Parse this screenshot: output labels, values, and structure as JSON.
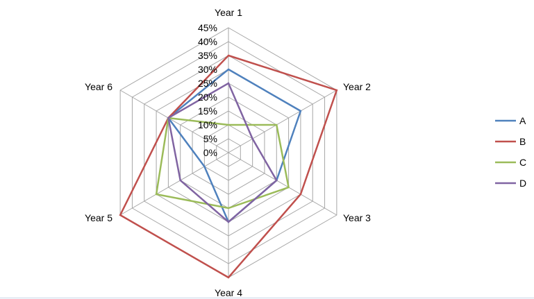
{
  "chart_data": {
    "type": "radar",
    "title": "",
    "axes": [
      "Year 1",
      "Year 2",
      "Year 3",
      "Year 4",
      "Year 5",
      "Year 6"
    ],
    "tick_values": [
      0,
      5,
      10,
      15,
      20,
      25,
      30,
      35,
      40,
      45
    ],
    "tick_labels": [
      "0%",
      "5%",
      "10%",
      "15%",
      "20%",
      "25%",
      "30%",
      "35%",
      "40%",
      "45%"
    ],
    "range": [
      0,
      45
    ],
    "grid": true,
    "legend_position": "right",
    "series": [
      {
        "name": "A",
        "color": "#4f81bd",
        "values": [
          30,
          30,
          20,
          25,
          10,
          25
        ]
      },
      {
        "name": "B",
        "color": "#c0504d",
        "values": [
          35,
          45,
          30,
          45,
          45,
          25
        ]
      },
      {
        "name": "C",
        "color": "#9bbb59",
        "values": [
          10,
          20,
          25,
          20,
          30,
          25
        ]
      },
      {
        "name": "D",
        "color": "#8064a2",
        "values": [
          25,
          10,
          20,
          25,
          20,
          25
        ]
      }
    ]
  }
}
